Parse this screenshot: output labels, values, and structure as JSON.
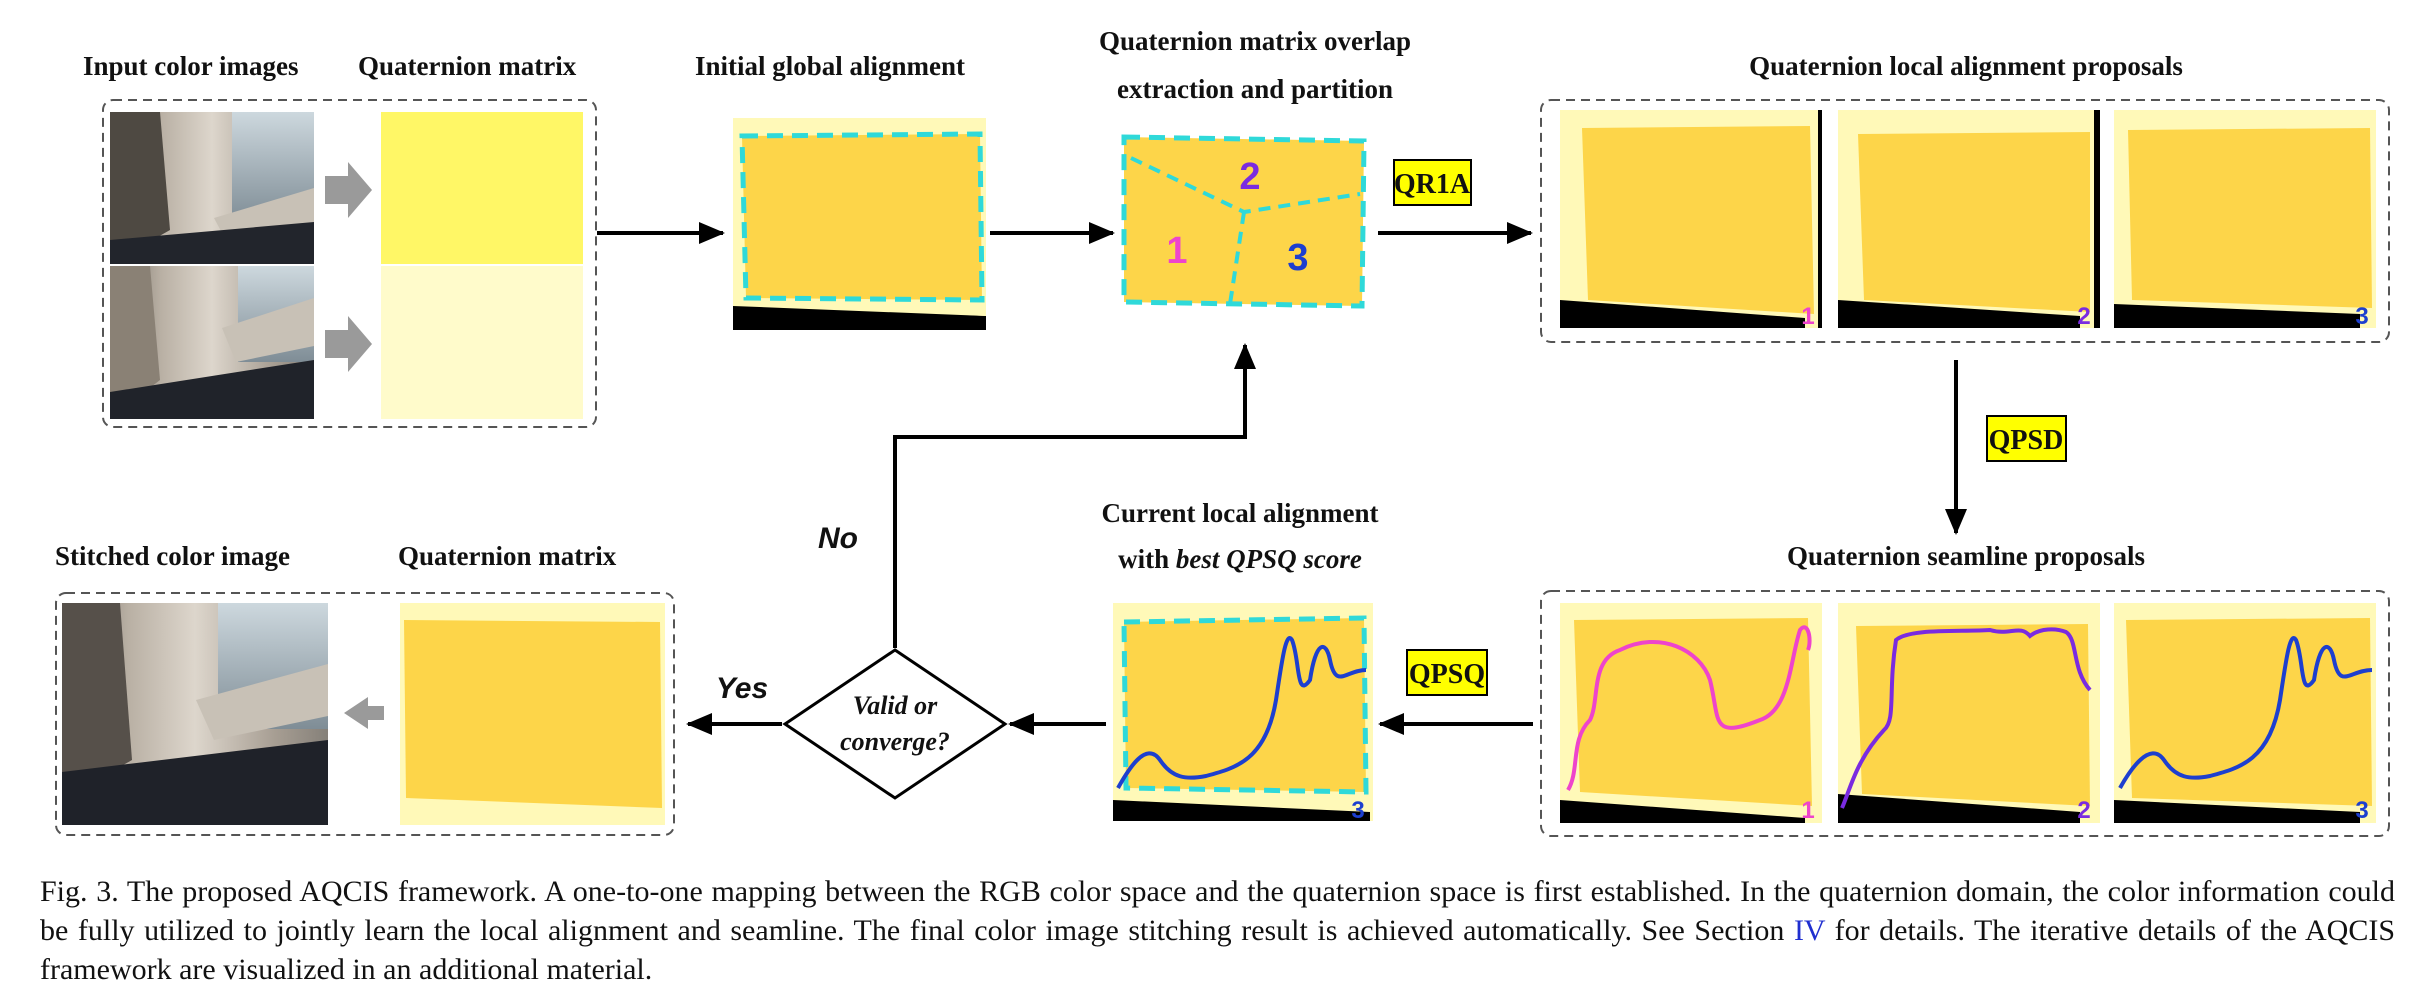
{
  "labels": {
    "input_color_images": "Input color images",
    "quaternion_matrix_top": "Quaternion matrix",
    "initial_global_alignment": "Initial global alignment",
    "overlap_line1": "Quaternion matrix overlap",
    "overlap_line2": "extraction and partition",
    "local_alignment_proposals": "Quaternion local alignment proposals",
    "seamline_proposals": "Quaternion seamline proposals",
    "current_line1": "Current local alignment",
    "current_line2_prefix": "with ",
    "current_line2_italic": "best QPSQ score",
    "stitched_color_image": "Stitched color image",
    "quaternion_matrix_bottom": "Quaternion matrix"
  },
  "tags": {
    "qr1a": "QR1A",
    "qpsd": "QPSD",
    "qpsq": "QPSQ"
  },
  "decision": {
    "line1": "Valid or",
    "line2": "converge?",
    "no": "No",
    "yes": "Yes"
  },
  "regions": {
    "r1": "1",
    "r2": "2",
    "r3": "3"
  },
  "colors": {
    "region1": "#ee44cc",
    "region2": "#7a2be0",
    "region3": "#1d3fcf",
    "tag_bg": "#ffff00",
    "matrix_light": "#fff9b8",
    "matrix_orange": "#fdd549",
    "dash_cyan": "#2fd9d9",
    "link": "#1f2fd0"
  },
  "caption": {
    "text_before": "Fig. 3.   The proposed AQCIS framework. A one-to-one mapping between the RGB color space and the quaternion space is first established. In the quaternion domain, the color information could be fully utilized to jointly learn the local alignment and seamline. The final color image stitching result is achieved automatically. See Section ",
    "link": "IV",
    "text_after": " for details. The iterative details of the AQCIS framework are visualized in an additional material."
  }
}
